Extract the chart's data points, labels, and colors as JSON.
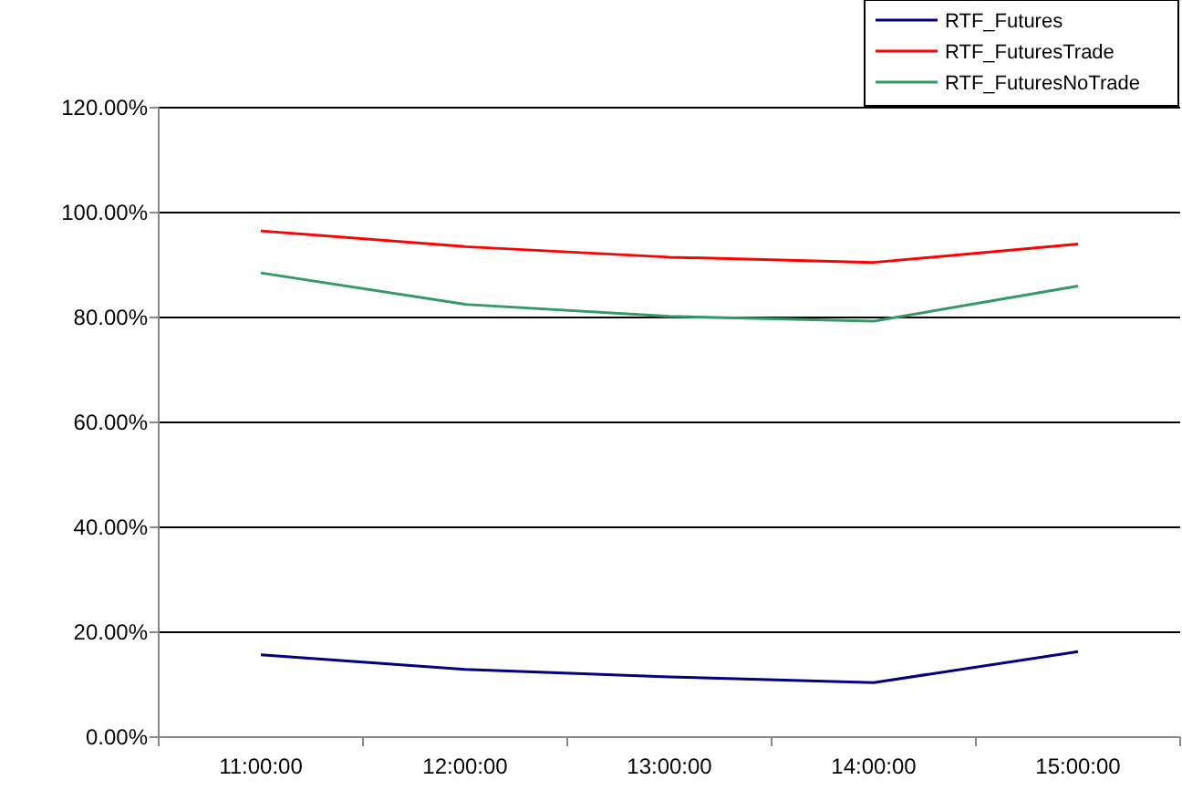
{
  "chart_data": {
    "type": "line",
    "categories": [
      "11:00:00",
      "12:00:00",
      "13:00:00",
      "14:00:00",
      "15:00:00"
    ],
    "series": [
      {
        "name": "RTF_Futures",
        "color": "#000080",
        "values": [
          15.7,
          12.9,
          11.5,
          10.4,
          16.3
        ]
      },
      {
        "name": "RTF_FuturesTrade",
        "color": "#ff0000",
        "values": [
          96.5,
          93.5,
          91.5,
          90.5,
          94
        ]
      },
      {
        "name": "RTF_FuturesNoTrade",
        "color": "#339966",
        "values": [
          88.5,
          82.5,
          80.2,
          79.3,
          86
        ]
      }
    ],
    "ylim": [
      0,
      120
    ],
    "yticks": [
      {
        "value": 0,
        "label": "0.00%"
      },
      {
        "value": 20,
        "label": "20.00%"
      },
      {
        "value": 40,
        "label": "40.00%"
      },
      {
        "value": 60,
        "label": "60.00%"
      },
      {
        "value": 80,
        "label": "80.00%"
      },
      {
        "value": 100,
        "label": "100.00%"
      },
      {
        "value": 120,
        "label": "120.00%"
      }
    ],
    "grid": "y",
    "legend": "top right",
    "marker": "none",
    "line_style": "solid"
  }
}
